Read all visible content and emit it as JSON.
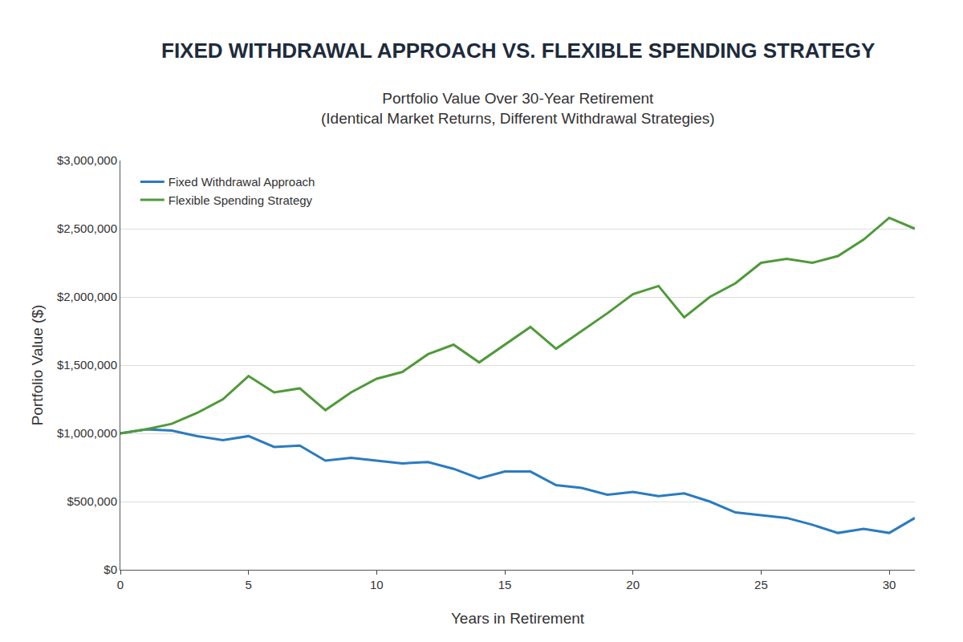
{
  "chart_data": {
    "type": "line",
    "title": "FIXED WITHDRAWAL APPROACH VS. FLEXIBLE SPENDING STRATEGY",
    "subtitle": [
      "Portfolio Value Over 30-Year Retirement",
      "(Identical Market Returns, Different Withdrawal Strategies)"
    ],
    "x_label": "Years in Retirement",
    "y_label": "Portfolio Value ($)",
    "x": [
      0,
      1,
      2,
      3,
      4,
      5,
      6,
      7,
      8,
      9,
      10,
      11,
      12,
      13,
      14,
      15,
      16,
      17,
      18,
      19,
      20,
      21,
      22,
      23,
      24,
      25,
      26,
      27,
      28,
      29,
      30,
      31
    ],
    "series": [
      {
        "name": "Fixed Withdrawal Approach",
        "color": "#2b7bbf",
        "values": [
          1000000,
          1030000,
          1020000,
          980000,
          950000,
          980000,
          900000,
          910000,
          800000,
          820000,
          800000,
          780000,
          790000,
          740000,
          670000,
          720000,
          720000,
          620000,
          600000,
          550000,
          570000,
          540000,
          560000,
          500000,
          420000,
          400000,
          380000,
          330000,
          270000,
          300000,
          270000,
          380000
        ]
      },
      {
        "name": "Flexible Spending Strategy",
        "color": "#4f9a3a",
        "values": [
          1000000,
          1030000,
          1070000,
          1150000,
          1250000,
          1420000,
          1300000,
          1330000,
          1170000,
          1300000,
          1400000,
          1450000,
          1580000,
          1650000,
          1520000,
          1650000,
          1780000,
          1620000,
          1750000,
          1880000,
          2020000,
          2080000,
          1850000,
          2000000,
          2100000,
          2250000,
          2280000,
          2250000,
          2300000,
          2420000,
          2580000,
          2500000
        ]
      }
    ],
    "xlim": [
      0,
      31
    ],
    "xticks": [
      0,
      5,
      10,
      15,
      20,
      25,
      30
    ],
    "ylim": [
      0,
      3000000
    ],
    "yticks": [
      {
        "value": 0,
        "label": "$0"
      },
      {
        "value": 500000,
        "label": "$500,000"
      },
      {
        "value": 1000000,
        "label": "$1,000,000"
      },
      {
        "value": 1500000,
        "label": "$1,500,000"
      },
      {
        "value": 2000000,
        "label": "$2,000,000"
      },
      {
        "value": 2500000,
        "label": "$2,500,000"
      },
      {
        "value": 3000000,
        "label": "$3,000,000"
      }
    ],
    "grid": true,
    "legend": "top-left"
  }
}
